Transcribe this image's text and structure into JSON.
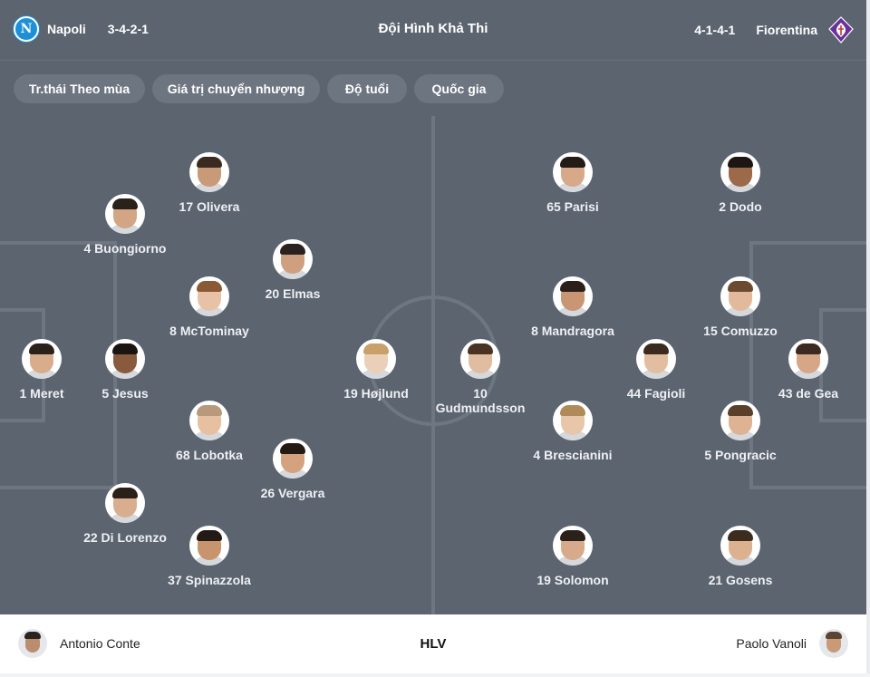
{
  "header": {
    "title": "Đội Hình Khả Thi",
    "home": {
      "name": "Napoli",
      "formation": "3-4-2-1",
      "logo_letter": "N",
      "logo_color": "#1e90d8"
    },
    "away": {
      "name": "Fiorentina",
      "formation": "4-1-4-1",
      "logo_color": "#6b2e9b"
    }
  },
  "tabs": [
    {
      "label": "Tr.thái Theo mùa"
    },
    {
      "label": "Giá trị chuyển nhượng"
    },
    {
      "label": "Độ tuổi"
    },
    {
      "label": "Quốc gia"
    }
  ],
  "pitch": {
    "home_players": [
      {
        "label": "17 Olivera",
        "skin": "#c99a78",
        "hair": "#3a2a20"
      },
      {
        "label": "4 Buongiorno",
        "skin": "#d2a584",
        "hair": "#2b211b"
      },
      {
        "label": "20 Elmas",
        "skin": "#cfa080",
        "hair": "#2a2220"
      },
      {
        "label": "8 McTominay",
        "skin": "#e8c2a6",
        "hair": "#8a5a35"
      },
      {
        "label": "1 Meret",
        "skin": "#d9ad8c",
        "hair": "#2a211a"
      },
      {
        "label": "5 Jesus",
        "skin": "#8a5a3c",
        "hair": "#1a1412"
      },
      {
        "label": "19 Højlund",
        "skin": "#ead0b8",
        "hair": "#c9a06a"
      },
      {
        "label": "68 Lobotka",
        "skin": "#e6c0a0",
        "hair": "#b89a7a"
      },
      {
        "label": "26 Vergara",
        "skin": "#d4a27e",
        "hair": "#231a14"
      },
      {
        "label": "22 Di Lorenzo",
        "skin": "#d9ae8e",
        "hair": "#2b2019"
      },
      {
        "label": "37 Spinazzola",
        "skin": "#c8946e",
        "hair": "#231a15"
      }
    ],
    "away_players": [
      {
        "label": "65 Parisi",
        "skin": "#d7a988",
        "hair": "#231b16"
      },
      {
        "label": "2 Dodo",
        "skin": "#9c6a4a",
        "hair": "#1d1613"
      },
      {
        "label": "8 Mandragora",
        "skin": "#c99674",
        "hair": "#2a2019"
      },
      {
        "label": "15 Comuzzo",
        "skin": "#e2b99b",
        "hair": "#6b4a30"
      },
      {
        "label": "10 Gudmundsson",
        "skin": "#e0bca0",
        "hair": "#4a3322"
      },
      {
        "label": "44 Fagioli",
        "skin": "#e3bd9f",
        "hair": "#3a2a1f"
      },
      {
        "label": "43 de Gea",
        "skin": "#d6a687",
        "hair": "#3b2a20"
      },
      {
        "label": "4 Brescianini",
        "skin": "#e8c6a9",
        "hair": "#b08a58"
      },
      {
        "label": "5 Pongracic",
        "skin": "#ddb394",
        "hair": "#5a3f2b"
      },
      {
        "label": "19 Solomon",
        "skin": "#d6aa8a",
        "hair": "#2a211b"
      },
      {
        "label": "21 Gosens",
        "skin": "#dcb190",
        "hair": "#3c2c20"
      }
    ]
  },
  "coaches": {
    "label": "HLV",
    "home": {
      "name": "Antonio Conte"
    },
    "away": {
      "name": "Paolo Vanoli"
    }
  },
  "colors": {
    "pitch": "#5c6470",
    "lines": "#6e7682",
    "chip": "#6d7580",
    "text_light": "#eef0f3"
  }
}
